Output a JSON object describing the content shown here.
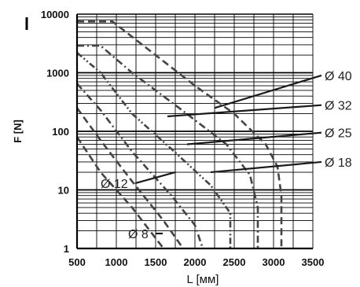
{
  "chart_data": {
    "type": "line",
    "title": "",
    "xlabel": "L [мм]",
    "ylabel": "F [N]",
    "xlim": [
      500,
      3500
    ],
    "ylim": [
      1,
      10000
    ],
    "yscale": "log",
    "grid": true,
    "x_ticks": [
      "500",
      "1000",
      "1500",
      "2000",
      "2500",
      "3000",
      "3500"
    ],
    "y_ticks": [
      "1",
      "10",
      "100",
      "1000",
      "10000"
    ],
    "series": [
      {
        "name": "Ø 40",
        "style": "dashed",
        "points": [
          [
            500,
            7500
          ],
          [
            950,
            7500
          ],
          [
            1500,
            2000
          ],
          [
            2000,
            600
          ],
          [
            2500,
            200
          ],
          [
            2900,
            60
          ],
          [
            3050,
            25
          ],
          [
            3100,
            8
          ],
          [
            3100,
            1
          ]
        ]
      },
      {
        "name": "Ø 32",
        "style": "dash-dot",
        "points": [
          [
            500,
            2900
          ],
          [
            800,
            2900
          ],
          [
            1200,
            1000
          ],
          [
            1800,
            250
          ],
          [
            2400,
            60
          ],
          [
            2700,
            18
          ],
          [
            2800,
            5
          ],
          [
            2800,
            1
          ]
        ]
      },
      {
        "name": "Ø 25",
        "style": "dash-dot-dot",
        "points": [
          [
            500,
            2200
          ],
          [
            800,
            1000
          ],
          [
            1200,
            200
          ],
          [
            1700,
            50
          ],
          [
            2200,
            12
          ],
          [
            2450,
            4
          ],
          [
            2450,
            1
          ]
        ]
      },
      {
        "name": "Ø 18",
        "style": "dash-dot",
        "points": [
          [
            500,
            650
          ],
          [
            800,
            230
          ],
          [
            1200,
            45
          ],
          [
            1700,
            8
          ],
          [
            2000,
            2.5
          ],
          [
            2100,
            1
          ]
        ]
      },
      {
        "name": "Ø 12",
        "style": "dashed",
        "points": [
          [
            500,
            250
          ],
          [
            800,
            70
          ],
          [
            1200,
            14
          ],
          [
            1600,
            3
          ],
          [
            1850,
            1
          ]
        ]
      },
      {
        "name": "Ø 8",
        "style": "dashed",
        "points": [
          [
            500,
            80
          ],
          [
            800,
            20
          ],
          [
            1200,
            5
          ],
          [
            1600,
            1
          ]
        ]
      }
    ],
    "callouts": [
      {
        "label": "Ø 40",
        "tip": [
          2250,
          250
        ],
        "text_at": [
          3650,
          900
        ]
      },
      {
        "label": "Ø 32",
        "tip": [
          1650,
          180
        ],
        "text_at": [
          3650,
          280
        ]
      },
      {
        "label": "Ø 25",
        "tip": [
          1900,
          60
        ],
        "text_at": [
          3650,
          95
        ]
      },
      {
        "label": "Ø 18",
        "tip": [
          2200,
          20
        ],
        "text_at": [
          3650,
          30
        ]
      },
      {
        "label": "Ø 12",
        "tip": [
          1750,
          20
        ],
        "text_at": [
          800,
          13
        ]
      },
      {
        "label": "Ø 8",
        "tip": [
          1500,
          1.8
        ],
        "text_at": [
          1150,
          1.8
        ]
      }
    ],
    "colors": {
      "curve": "#444444",
      "grid": "#000000",
      "axis": "#000000",
      "pointer": "#1a1a1a"
    }
  }
}
